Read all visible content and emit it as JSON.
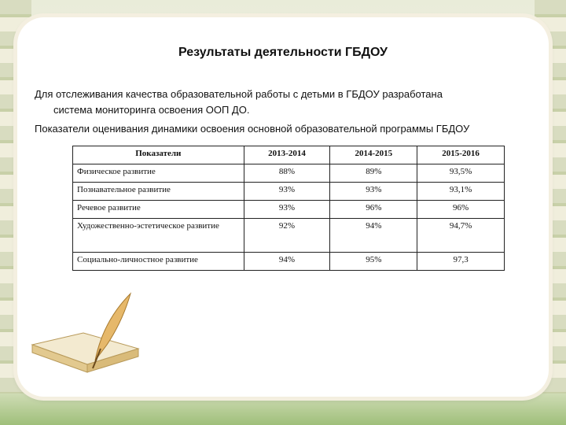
{
  "title": "Результаты деятельности ГБДОУ",
  "paragraph1_line1": "Для отслеживания  качества образовательной работы с детьми в ГБДОУ разработана",
  "paragraph1_line2": "система мониторинга освоения ООП ДО.",
  "paragraph2": "Показатели оценивания динамики освоения основной образовательной программы ГБДОУ",
  "table": {
    "headers": [
      "Показатели",
      "2013-2014",
      "2014-2015",
      "2015-2016"
    ],
    "rows": [
      [
        "Физическое  развитие",
        "88%",
        "89%",
        "93,5%"
      ],
      [
        "Познавательное  развитие",
        "93%",
        "93%",
        "93,1%"
      ],
      [
        "Речевое развитие",
        "93%",
        "96%",
        "96%"
      ],
      [
        "Художественно-эстетическое развитие",
        "92%",
        "94%",
        "94,7%"
      ],
      [
        "Социально-личностное развитие",
        "94%",
        "95%",
        "97,3"
      ]
    ]
  }
}
